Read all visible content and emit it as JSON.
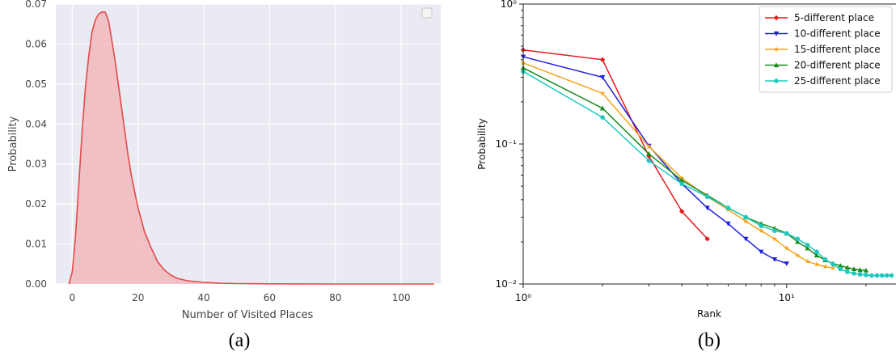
{
  "captions": {
    "a": "(a)",
    "b": "(b)"
  },
  "chart_data": [
    {
      "type": "area",
      "xlabel": "Number of Visited Places",
      "ylabel": "Probability",
      "xlim": [
        -5,
        112
      ],
      "ylim": [
        0,
        0.07
      ],
      "xticks": [
        "0",
        "20",
        "40",
        "60",
        "80",
        "100"
      ],
      "yticks": [
        "0.00",
        "0.01",
        "0.02",
        "0.03",
        "0.04",
        "0.05",
        "0.06",
        "0.07"
      ],
      "grid": true,
      "color": "#e24a4a",
      "fill_color": "#f2b8bd",
      "legend_placement": "top-right",
      "series": [
        {
          "x": [
            -1,
            0,
            1,
            2,
            3,
            4,
            5,
            6,
            7,
            8,
            9,
            10,
            11,
            12,
            13,
            14,
            15,
            16,
            17,
            18,
            19,
            20,
            21,
            22,
            24,
            26,
            28,
            30,
            32,
            35,
            40,
            45,
            50,
            60,
            70,
            80,
            90,
            100,
            110
          ],
          "y": [
            0,
            0.003,
            0.012,
            0.025,
            0.038,
            0.049,
            0.057,
            0.063,
            0.066,
            0.0675,
            0.068,
            0.068,
            0.066,
            0.061,
            0.056,
            0.05,
            0.044,
            0.038,
            0.032,
            0.027,
            0.023,
            0.019,
            0.016,
            0.013,
            0.009,
            0.0055,
            0.0035,
            0.0022,
            0.0014,
            0.0008,
            0.0004,
            0.0002,
            0.0001,
            5e-05,
            2e-05,
            1e-05,
            1e-05,
            1e-05,
            0
          ]
        }
      ]
    },
    {
      "type": "line",
      "xlabel": "Rank",
      "ylabel": "Probability",
      "xscale": "log",
      "yscale": "log",
      "xlim": [
        1,
        26
      ],
      "ylim": [
        0.01,
        1
      ],
      "xticks": [
        {
          "value": 1,
          "label": "10⁰"
        },
        {
          "value": 10,
          "label": "10¹"
        }
      ],
      "yticks": [
        {
          "value": 0.01,
          "label": "10⁻²"
        },
        {
          "value": 0.1,
          "label": "10⁻¹"
        },
        {
          "value": 1,
          "label": "10⁰"
        }
      ],
      "legend_placement": "top-right",
      "series": [
        {
          "name": "5-different place",
          "color": "#e31a1c",
          "marker": "diamond",
          "x": [
            1,
            2,
            3,
            4,
            5
          ],
          "y": [
            0.47,
            0.4,
            0.082,
            0.033,
            0.021
          ]
        },
        {
          "name": "10-different place",
          "color": "#1f1fe0",
          "marker": "triangle-down",
          "x": [
            1,
            2,
            3,
            4,
            5,
            6,
            7,
            8,
            9,
            10
          ],
          "y": [
            0.42,
            0.3,
            0.097,
            0.052,
            0.035,
            0.027,
            0.021,
            0.017,
            0.015,
            0.014
          ]
        },
        {
          "name": "15-different place",
          "color": "#f4a51c",
          "marker": "star",
          "x": [
            1,
            2,
            3,
            4,
            5,
            6,
            7,
            8,
            9,
            10,
            11,
            12,
            13,
            14,
            15
          ],
          "y": [
            0.38,
            0.23,
            0.096,
            0.057,
            0.042,
            0.034,
            0.028,
            0.024,
            0.021,
            0.018,
            0.016,
            0.0145,
            0.0138,
            0.0133,
            0.013
          ]
        },
        {
          "name": "20-different place",
          "color": "#1b8a1b",
          "marker": "triangle-up",
          "x": [
            1,
            2,
            3,
            4,
            5,
            6,
            7,
            8,
            9,
            10,
            11,
            12,
            13,
            14,
            15,
            16,
            17,
            18,
            19,
            20
          ],
          "y": [
            0.35,
            0.18,
            0.085,
            0.055,
            0.043,
            0.035,
            0.03,
            0.027,
            0.025,
            0.023,
            0.02,
            0.018,
            0.016,
            0.0148,
            0.014,
            0.0135,
            0.0131,
            0.0128,
            0.0126,
            0.0125
          ]
        },
        {
          "name": "25-different place",
          "color": "#1ec8be",
          "marker": "circle",
          "x": [
            1,
            2,
            3,
            4,
            5,
            6,
            7,
            8,
            9,
            10,
            11,
            12,
            13,
            14,
            15,
            16,
            17,
            18,
            19,
            20,
            21,
            22,
            23,
            24,
            25
          ],
          "y": [
            0.33,
            0.155,
            0.076,
            0.052,
            0.042,
            0.035,
            0.03,
            0.026,
            0.024,
            0.023,
            0.021,
            0.019,
            0.017,
            0.015,
            0.0138,
            0.0128,
            0.0122,
            0.0119,
            0.0117,
            0.0116,
            0.0115,
            0.0115,
            0.0115,
            0.0115,
            0.0115
          ]
        }
      ]
    }
  ]
}
